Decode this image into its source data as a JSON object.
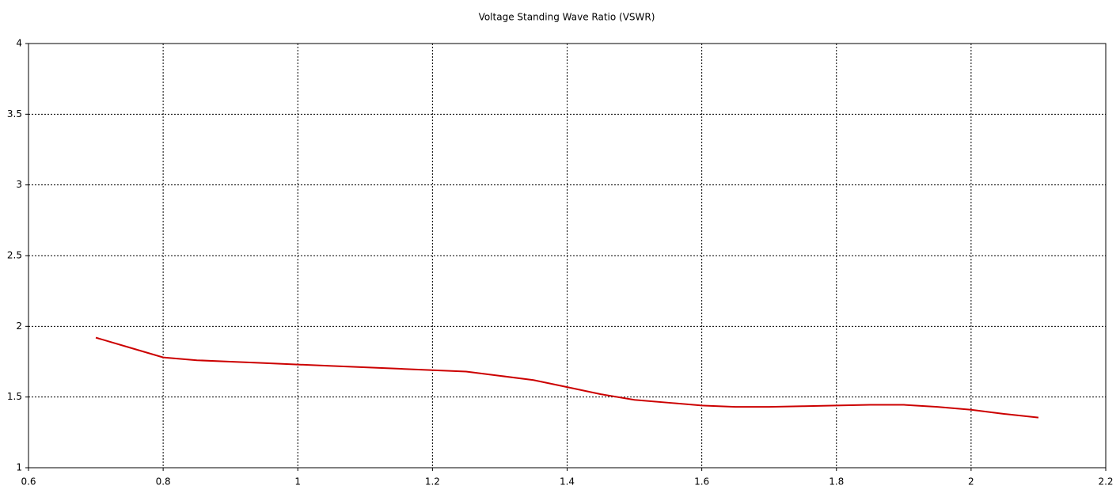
{
  "chart_data": {
    "type": "line",
    "title": "Voltage Standing Wave Ratio (VSWR)",
    "x": [
      0.7,
      0.75,
      0.8,
      0.85,
      0.9,
      0.95,
      1.0,
      1.05,
      1.1,
      1.15,
      1.2,
      1.25,
      1.3,
      1.35,
      1.4,
      1.45,
      1.5,
      1.55,
      1.6,
      1.65,
      1.7,
      1.75,
      1.8,
      1.85,
      1.9,
      1.95,
      2.0,
      2.05,
      2.1
    ],
    "values": [
      1.92,
      1.85,
      1.78,
      1.76,
      1.75,
      1.74,
      1.73,
      1.72,
      1.71,
      1.7,
      1.69,
      1.68,
      1.65,
      1.62,
      1.57,
      1.52,
      1.48,
      1.46,
      1.44,
      1.43,
      1.43,
      1.435,
      1.44,
      1.445,
      1.445,
      1.43,
      1.41,
      1.38,
      1.355
    ],
    "color": "#cc0000",
    "xlim": [
      0.6,
      2.2
    ],
    "xticks": [
      0.6,
      0.8,
      1,
      1.2,
      1.4,
      1.6,
      1.8,
      2,
      2.2
    ],
    "ylim": [
      1,
      4
    ],
    "yticks": [
      1,
      1.5,
      2,
      2.5,
      3,
      3.5,
      4
    ],
    "grid": true
  }
}
